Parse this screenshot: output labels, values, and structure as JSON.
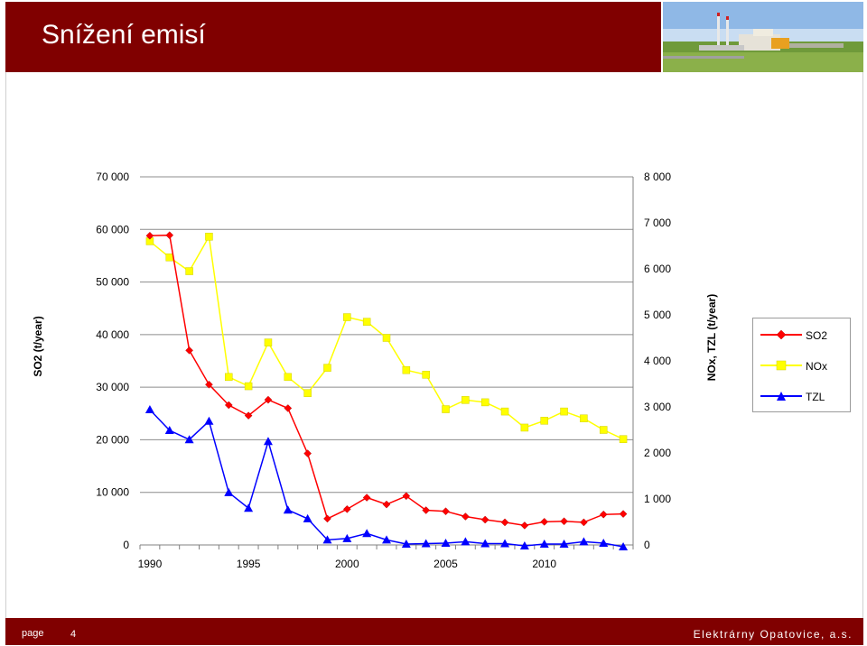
{
  "header": {
    "title": "Snížení emisí"
  },
  "footer": {
    "page_label": "page",
    "page_number": "4",
    "company": "Elektrárny Opatovice, a.s."
  },
  "colors": {
    "brand": "#800000",
    "so2": "#ff0000",
    "nox": "#ffff00",
    "tzl": "#0000ff",
    "plot_area": "#ffffff"
  },
  "chart_data": {
    "type": "line",
    "title": "",
    "x": [
      1990,
      1991,
      1992,
      1993,
      1994,
      1995,
      1996,
      1997,
      1998,
      1999,
      2000,
      2001,
      2002,
      2003,
      2004,
      2005,
      2006,
      2007,
      2008,
      2009,
      2010,
      2011,
      2012,
      2013,
      2014
    ],
    "xticks": [
      "1990",
      "1995",
      "2000",
      "2005",
      "2010"
    ],
    "ylabel_left": "SO2 (t/year)",
    "ylabel_right": "NOx, TZL (t/year)",
    "yticks_left": [
      "0",
      "10 000",
      "20 000",
      "30 000",
      "40 000",
      "50 000",
      "60 000",
      "70 000"
    ],
    "yticks_right": [
      "0",
      "1 000",
      "2 000",
      "3 000",
      "4 000",
      "5 000",
      "6 000",
      "7 000",
      "8 000"
    ],
    "ylim_left": [
      0,
      70000
    ],
    "ylim_right": [
      0,
      8000
    ],
    "grid": "horizontal",
    "legend_position": "right",
    "series": [
      {
        "name": "SO2",
        "axis": "left",
        "marker": "diamond",
        "color": "#ff0000",
        "values": [
          58800,
          58900,
          37000,
          30500,
          26600,
          24600,
          27600,
          26000,
          17400,
          5000,
          6800,
          9000,
          7700,
          9300,
          6600,
          6400,
          5400,
          4800,
          4300,
          3700,
          4400,
          4500,
          4300,
          5800,
          5900
        ]
      },
      {
        "name": "NOx",
        "axis": "right",
        "marker": "square",
        "color": "#ffff00",
        "values": [
          6600,
          6250,
          5950,
          6700,
          3650,
          3450,
          4400,
          3650,
          3300,
          3850,
          4950,
          4850,
          4500,
          3800,
          3700,
          2950,
          3150,
          3100,
          2900,
          2550,
          2700,
          2900,
          2750,
          2500,
          2300
        ]
      },
      {
        "name": "TZL",
        "axis": "right",
        "marker": "triangle",
        "color": "#0000ff",
        "values": [
          2940,
          2490,
          2290,
          2690,
          1140,
          800,
          2250,
          760,
          570,
          110,
          140,
          250,
          110,
          20,
          30,
          40,
          70,
          30,
          30,
          -20,
          20,
          20,
          70,
          40,
          -40
        ]
      }
    ]
  }
}
